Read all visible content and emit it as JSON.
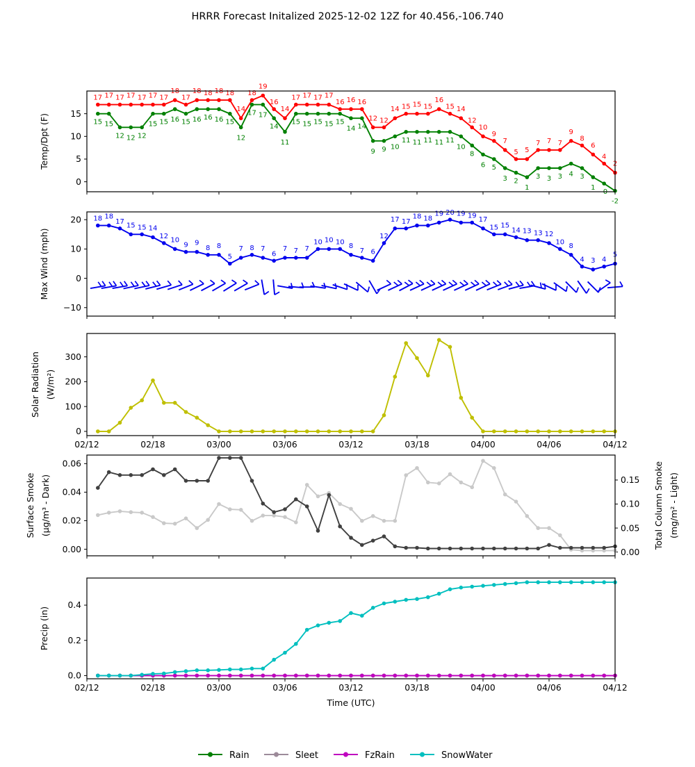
{
  "title": "HRRR Forecast Initalized 2025-12-02 12Z for 40.456,-106.740",
  "x_axis": {
    "label": "Time (UTC)",
    "tick_labels": [
      "02/12",
      "02/18",
      "03/00",
      "03/06",
      "03/12",
      "03/18",
      "04/00",
      "04/06",
      "04/12"
    ],
    "tick_hours": [
      0,
      6,
      12,
      18,
      24,
      30,
      36,
      42,
      48
    ],
    "start_hour": 1,
    "end_hour": 48
  },
  "colors": {
    "temperature": "#ff0000",
    "dewpoint": "#008000",
    "wind": "#0000ee",
    "solar": "#bfbf00",
    "smoke_dark": "#404040",
    "smoke_light": "#c9c9c9",
    "rain": "#008000",
    "sleet": "#9c8a99",
    "fzrain": "#bf00bf",
    "snowwater": "#00bfbf"
  },
  "chart_data": [
    {
      "panel": "temp-dpt",
      "type": "line",
      "ylabel": "Temp/Dpt (F)",
      "yticks": [
        0,
        5,
        10,
        15
      ],
      "yticklabels": [
        "0",
        "5",
        "10",
        "15"
      ],
      "ylim": [
        -2.2,
        20.0
      ],
      "series": [
        {
          "name": "temperature",
          "color": "#ff0000",
          "label_side": "above",
          "values": [
            17,
            17,
            17,
            17,
            17,
            17,
            17,
            18,
            17,
            18,
            18,
            18,
            18,
            14,
            18,
            19,
            16,
            14,
            17,
            17,
            17,
            17,
            16,
            16,
            16,
            12,
            12,
            14,
            15,
            15,
            15,
            16,
            15,
            14,
            12,
            10,
            9,
            7,
            5,
            5,
            7,
            7,
            7,
            9,
            8,
            6,
            4,
            2
          ],
          "labels": [
            "17",
            "17",
            "17",
            "17",
            "17",
            "17",
            "17",
            "18",
            "17",
            "18",
            "18",
            "18",
            "18",
            "14",
            "18",
            "19",
            "16",
            "14",
            "17",
            "17",
            "17",
            "17",
            "16",
            "16",
            "16",
            "12",
            "12",
            "14",
            "15",
            "15",
            "15",
            "16",
            "15",
            "14",
            "12",
            "10",
            "9",
            "7",
            "5",
            "5",
            "7",
            "7",
            "7",
            "9",
            "8",
            "6",
            "4",
            "2"
          ]
        },
        {
          "name": "dewpoint",
          "color": "#008000",
          "label_side": "below",
          "values": [
            15,
            15,
            12,
            12,
            12,
            15,
            15,
            16,
            15,
            16,
            16,
            16,
            15,
            12,
            17,
            17,
            14,
            11,
            15,
            15,
            15,
            15,
            15,
            14,
            14,
            9,
            9,
            10,
            11,
            11,
            11,
            11,
            11,
            10,
            8,
            6,
            5,
            3,
            2,
            1,
            3,
            3,
            3,
            4,
            3,
            1,
            -0.4,
            -2
          ],
          "labels": [
            "15",
            "15",
            "12",
            "12",
            "12",
            "15",
            "15",
            "16",
            "15",
            "16",
            "16",
            "16",
            "15",
            "12",
            "17",
            "17",
            "14",
            "11",
            "15",
            "15",
            "15",
            "15",
            "15",
            "14",
            "14",
            "9",
            "9",
            "10",
            "11",
            "11",
            "11",
            "11",
            "11",
            "10",
            "8",
            "6",
            "5",
            "3",
            "2",
            "1",
            "3",
            "3",
            "3",
            "4",
            "3",
            "1",
            "-0",
            "-2"
          ]
        }
      ]
    },
    {
      "panel": "wind",
      "type": "line",
      "ylabel": "Max Wind (mph)",
      "yticks": [
        -10,
        0,
        10,
        20
      ],
      "yticklabels": [
        "−10",
        "0",
        "10",
        "20"
      ],
      "ylim": [
        -12.9,
        22.65
      ],
      "series": [
        {
          "name": "max-wind",
          "color": "#0000ee",
          "label_side": "above",
          "values": [
            18,
            18,
            17,
            15,
            15,
            14,
            12,
            10,
            9,
            9,
            8,
            8,
            5,
            7,
            8,
            7,
            6,
            7,
            7,
            7,
            10,
            10,
            10,
            8,
            7,
            6,
            12,
            17,
            17,
            18,
            18,
            19,
            20,
            19,
            19,
            17,
            15,
            15,
            14,
            13,
            13,
            12,
            10,
            8,
            4,
            3,
            4,
            5
          ],
          "labels": [
            "18",
            "18",
            "17",
            "15",
            "15",
            "14",
            "12",
            "10",
            "9",
            "9",
            "8",
            "8",
            "5",
            "7",
            "8",
            "7",
            "6",
            "7",
            "7",
            "7",
            "10",
            "10",
            "10",
            "8",
            "7",
            "6",
            "12",
            "17",
            "17",
            "18",
            "18",
            "19",
            "20",
            "19",
            "19",
            "17",
            "15",
            "15",
            "14",
            "13",
            "13",
            "12",
            "10",
            "8",
            "4",
            "3",
            "4",
            "5"
          ]
        }
      ],
      "barbs": {
        "y_value": -3,
        "angles_deg": [
          10,
          10,
          10,
          12,
          12,
          14,
          16,
          18,
          22,
          26,
          28,
          30,
          32,
          30,
          22,
          -80,
          -85,
          -10,
          -5,
          0,
          -8,
          -12,
          -18,
          -25,
          -40,
          -60,
          25,
          25,
          28,
          25,
          25,
          25,
          25,
          25,
          25,
          25,
          22,
          20,
          15,
          10,
          -15,
          -25,
          -35,
          -45,
          -55,
          -45,
          35,
          5
        ]
      }
    },
    {
      "panel": "solar",
      "type": "line",
      "ylabel": [
        "Solar Radiation",
        "(W/m²)"
      ],
      "yticks": [
        0,
        100,
        200,
        300
      ],
      "yticklabels": [
        "0",
        "100",
        "200",
        "300"
      ],
      "ylim": [
        -17,
        394
      ],
      "show_xticklabels": true,
      "series": [
        {
          "name": "solar-radiation",
          "color": "#bfbf00",
          "values": [
            0,
            0,
            35,
            95,
            125,
            205,
            115,
            115,
            78,
            55,
            25,
            0,
            0,
            0,
            0,
            0,
            0,
            0,
            0,
            0,
            0,
            0,
            0,
            0,
            0,
            0,
            65,
            220,
            355,
            295,
            225,
            368,
            340,
            135,
            55,
            0,
            0,
            0,
            0,
            0,
            0,
            0,
            0,
            0,
            0,
            0,
            0,
            0
          ]
        }
      ]
    },
    {
      "panel": "smoke",
      "type": "line",
      "ylabel_left": [
        "Surface Smoke",
        "(µg/m³ - Dark)"
      ],
      "ylabel_right": [
        "Total Column Smoke",
        "(mg/m² - Light)"
      ],
      "yticks": [
        0,
        0.02,
        0.04,
        0.06
      ],
      "yticklabels": [
        "0.00",
        "0.02",
        "0.04",
        "0.06"
      ],
      "yticks_right": [
        0,
        0.05,
        0.1,
        0.15
      ],
      "yticklabels_right": [
        "0.00",
        "0.05",
        "0.10",
        "0.15"
      ],
      "ylim": [
        -0.0046,
        0.066
      ],
      "ylim_right": [
        -0.0078,
        0.202
      ],
      "series": [
        {
          "name": "total-column-smoke",
          "color": "#c9c9c9",
          "axis": "right",
          "values": [
            0.077,
            0.082,
            0.085,
            0.083,
            0.082,
            0.073,
            0.06,
            0.059,
            0.07,
            0.05,
            0.067,
            0.1,
            0.089,
            0.088,
            0.065,
            0.076,
            0.076,
            0.073,
            0.062,
            0.14,
            0.116,
            0.123,
            0.1,
            0.09,
            0.065,
            0.075,
            0.065,
            0.065,
            0.16,
            0.175,
            0.145,
            0.143,
            0.162,
            0.145,
            0.135,
            0.19,
            0.175,
            0.12,
            0.105,
            0.075,
            0.05,
            0.05,
            0.035,
            0.005,
            0.003,
            0.003,
            0.003,
            0.003
          ]
        },
        {
          "name": "surface-smoke",
          "color": "#404040",
          "values": [
            0.043,
            0.054,
            0.052,
            0.052,
            0.052,
            0.056,
            0.052,
            0.056,
            0.048,
            0.048,
            0.048,
            0.064,
            0.064,
            0.064,
            0.048,
            0.032,
            0.026,
            0.028,
            0.035,
            0.03,
            0.013,
            0.038,
            0.016,
            0.008,
            0.003,
            0.006,
            0.009,
            0.002,
            0.001,
            0.001,
            0.0005,
            0.0005,
            0.0005,
            0.0005,
            0.0005,
            0.0005,
            0.0005,
            0.0005,
            0.0005,
            0.0005,
            0.0005,
            0.003,
            0.001,
            0.001,
            0.001,
            0.001,
            0.001,
            0.002
          ]
        }
      ]
    },
    {
      "panel": "precip",
      "type": "line",
      "ylabel": "Precip (in)",
      "yticks": [
        0,
        0.2,
        0.4
      ],
      "yticklabels": [
        "0.0",
        "0.2",
        "0.4"
      ],
      "ylim": [
        -0.018,
        0.554
      ],
      "show_xticklabels": true,
      "series": [
        {
          "name": "rain",
          "color": "#008000",
          "values": [
            0,
            0,
            0,
            0,
            0,
            0,
            0,
            0,
            0,
            0,
            0,
            0,
            0,
            0,
            0,
            0,
            0,
            0,
            0,
            0,
            0,
            0,
            0,
            0,
            0,
            0,
            0,
            0,
            0,
            0,
            0,
            0,
            0,
            0,
            0,
            0,
            0,
            0,
            0,
            0,
            0,
            0,
            0,
            0,
            0,
            0,
            0,
            0
          ]
        },
        {
          "name": "sleet",
          "color": "#9c8a99",
          "values": [
            0,
            0,
            0,
            0,
            0,
            0,
            0,
            0,
            0,
            0,
            0,
            0,
            0,
            0,
            0,
            0,
            0,
            0,
            0,
            0,
            0,
            0,
            0,
            0,
            0,
            0,
            0,
            0,
            0,
            0,
            0,
            0,
            0,
            0,
            0,
            0,
            0,
            0,
            0,
            0,
            0,
            0,
            0,
            0,
            0,
            0,
            0,
            0
          ]
        },
        {
          "name": "fzrain",
          "color": "#bf00bf",
          "values": [
            0,
            0,
            0,
            0,
            0,
            0,
            0,
            0,
            0,
            0,
            0,
            0,
            0,
            0,
            0,
            0,
            0,
            0,
            0,
            0,
            0,
            0,
            0,
            0,
            0,
            0,
            0,
            0,
            0,
            0,
            0,
            0,
            0,
            0,
            0,
            0,
            0,
            0,
            0,
            0,
            0,
            0,
            0,
            0,
            0,
            0,
            0,
            0
          ]
        },
        {
          "name": "snowwater",
          "color": "#00bfbf",
          "values": [
            0,
            0,
            0,
            0,
            0.005,
            0.01,
            0.012,
            0.02,
            0.025,
            0.03,
            0.03,
            0.032,
            0.035,
            0.035,
            0.04,
            0.04,
            0.09,
            0.13,
            0.18,
            0.26,
            0.285,
            0.3,
            0.31,
            0.355,
            0.34,
            0.385,
            0.41,
            0.42,
            0.43,
            0.435,
            0.445,
            0.465,
            0.49,
            0.5,
            0.505,
            0.51,
            0.515,
            0.52,
            0.525,
            0.53,
            0.53,
            0.53,
            0.53,
            0.53,
            0.53,
            0.53,
            0.53,
            0.53
          ]
        }
      ]
    }
  ],
  "legend": {
    "items": [
      {
        "label": "Rain",
        "color": "#008000"
      },
      {
        "label": "Sleet",
        "color": "#9c8a99"
      },
      {
        "label": "FzRain",
        "color": "#bf00bf"
      },
      {
        "label": "SnowWater",
        "color": "#00bfbf"
      }
    ]
  }
}
